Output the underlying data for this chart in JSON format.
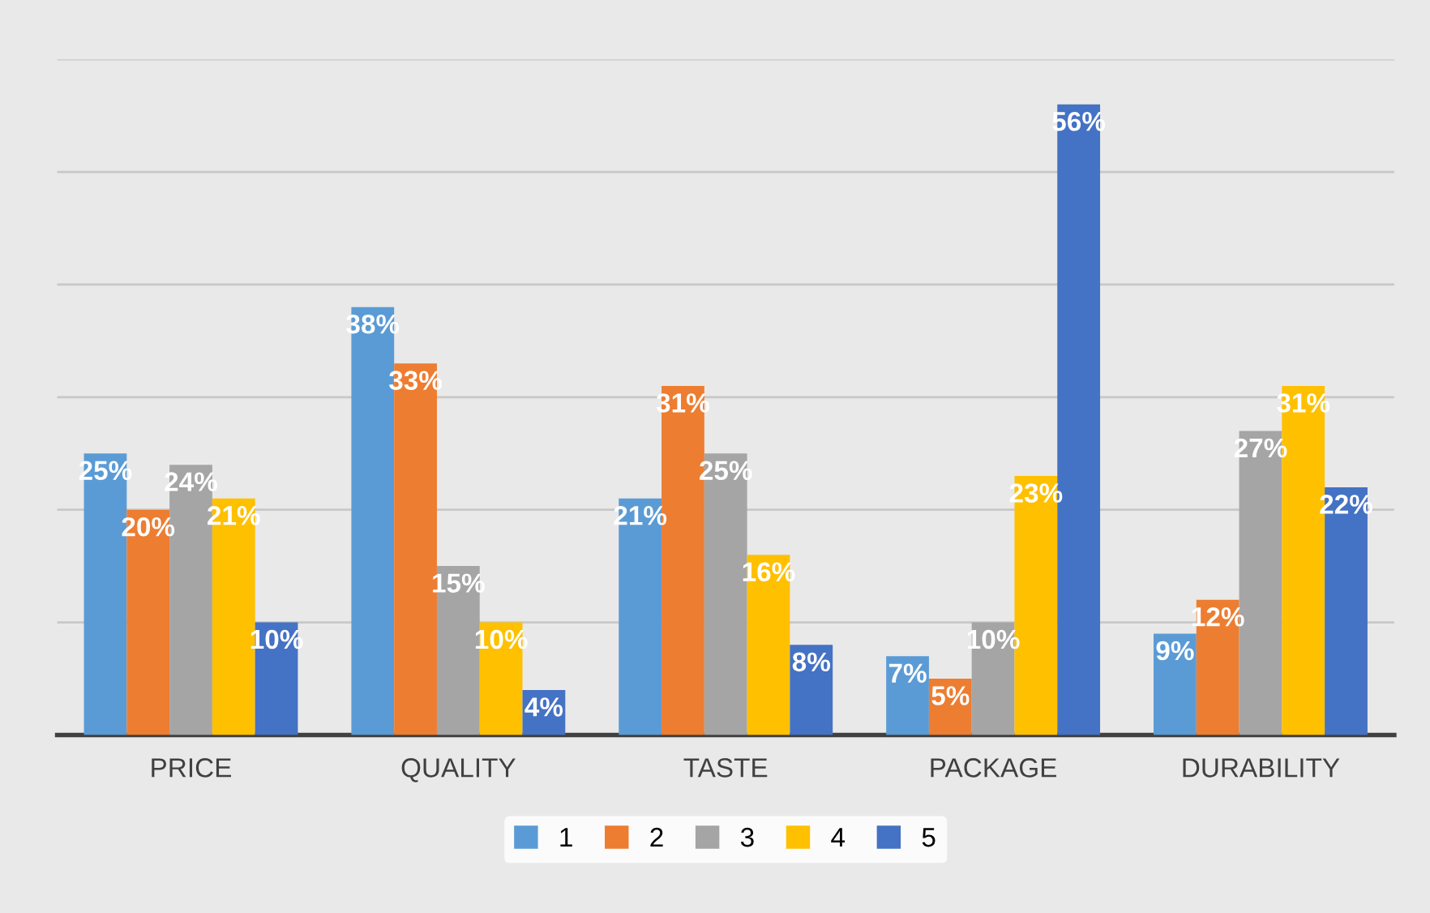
{
  "chart_data": {
    "type": "bar",
    "categories": [
      "PRICE",
      "QUALITY",
      "TASTE",
      "PACKAGE",
      "DURABILITY"
    ],
    "series": [
      {
        "name": "1",
        "color": "#5b9bd5",
        "values": [
          25,
          38,
          21,
          7,
          9
        ],
        "value_labels": [
          "25%",
          "38%",
          "21%",
          "7%",
          "9%"
        ]
      },
      {
        "name": "2",
        "color": "#ed7d31",
        "values": [
          20,
          33,
          31,
          5,
          12
        ],
        "value_labels": [
          "20%",
          "33%",
          "31%",
          "5%",
          "12%"
        ]
      },
      {
        "name": "3",
        "color": "#a5a5a5",
        "values": [
          24,
          15,
          25,
          10,
          27
        ],
        "value_labels": [
          "24%",
          "15%",
          "25%",
          "10%",
          "27%"
        ]
      },
      {
        "name": "4",
        "color": "#ffc000",
        "values": [
          21,
          10,
          16,
          23,
          31
        ],
        "value_labels": [
          "21%",
          "10%",
          "16%",
          "23%",
          "31%"
        ]
      },
      {
        "name": "5",
        "color": "#4472c4",
        "values": [
          10,
          4,
          8,
          56,
          22
        ],
        "value_labels": [
          "10%",
          "4%",
          "8%",
          "56%",
          "22%"
        ]
      }
    ],
    "ylim": [
      0,
      60
    ],
    "yticks": [
      {
        "value": 0,
        "label": null
      },
      {
        "value": 10,
        "label": null
      },
      {
        "value": 20,
        "label": null
      },
      {
        "value": 30,
        "label": null
      },
      {
        "value": 40,
        "label": null
      },
      {
        "value": 50,
        "label": null
      },
      {
        "value": 60,
        "label": null
      }
    ],
    "tick_labels": "x",
    "grid": "y",
    "legend": "bottom"
  }
}
